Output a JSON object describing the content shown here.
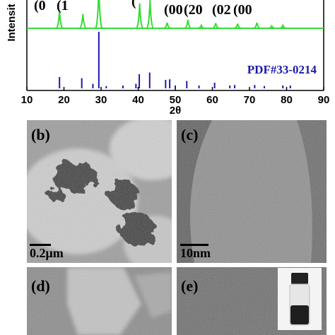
{
  "chart_data": {
    "type": "line",
    "x_label": "2θ",
    "y_label": "Intensit",
    "xlim": [
      10,
      90
    ],
    "xticks": [
      10,
      20,
      30,
      40,
      50,
      60,
      70,
      80,
      90
    ],
    "ylim": [
      0,
      100
    ],
    "peak_labels": [
      "(0",
      "(1",
      "(",
      "(00",
      "(20",
      "(02",
      "(00"
    ],
    "series": [
      {
        "color": "#33dd33",
        "x": [
          18.8,
          25.1,
          29.4,
          40.4,
          43.2,
          47.8,
          53.4,
          57.0,
          60.9,
          66.8,
          72.0,
          76.0,
          79.0
        ],
        "values": [
          31,
          25,
          75,
          44,
          50,
          10,
          15,
          5,
          9,
          8,
          10,
          4,
          5
        ]
      },
      {
        "name": "PDF#33-0214",
        "color": "#1a1aaa",
        "x": [
          18.8,
          24.8,
          27.8,
          29.4,
          31.4,
          35.9,
          39.4,
          40.3,
          43.1,
          47.4,
          48.5,
          50.0,
          53.1,
          56.4,
          60.6,
          64.7,
          66.0,
          71.4,
          74.0,
          79.0,
          81.0
        ],
        "values": [
          20,
          18,
          8,
          100,
          4,
          5,
          8,
          25,
          28,
          15,
          16,
          5,
          13,
          5,
          10,
          5,
          6,
          6,
          4,
          5,
          5
        ]
      }
    ]
  },
  "panels": [
    {
      "label": "(b)",
      "scale_bar": "0.2μm"
    },
    {
      "label": "(c)",
      "scale_bar": "10nm"
    },
    {
      "label": "(d)"
    },
    {
      "label": "(e)"
    }
  ]
}
